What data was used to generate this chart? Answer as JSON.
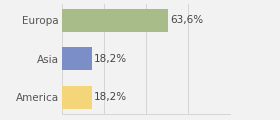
{
  "categories": [
    "America",
    "Asia",
    "Europa"
  ],
  "values": [
    18.2,
    18.2,
    63.6
  ],
  "bar_colors": [
    "#f5d57a",
    "#7b8ec8",
    "#a8bc8a"
  ],
  "labels": [
    "18,2%",
    "18,2%",
    "63,6%"
  ],
  "xlim": [
    0,
    100
  ],
  "background_color": "#f2f2f2",
  "bar_height": 0.6,
  "label_fontsize": 7.5,
  "tick_fontsize": 7.5,
  "grid_ticks": [
    0,
    25,
    50,
    75,
    100
  ],
  "grid_color": "#d0d0d0"
}
